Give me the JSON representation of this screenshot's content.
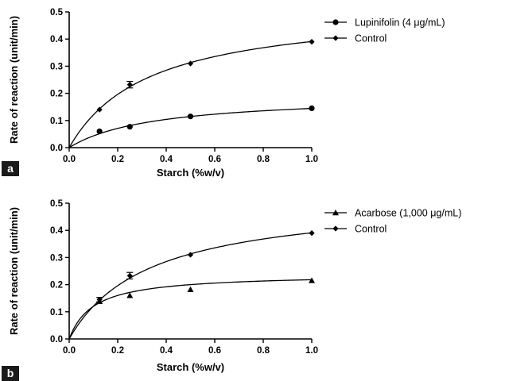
{
  "chart_data": [
    {
      "type": "line",
      "panel_label": "a",
      "xlabel": "Starch (%w/v)",
      "ylabel": "Rate of reaction (unit/min)",
      "xlim": [
        0,
        1.0
      ],
      "ylim": [
        0,
        0.5
      ],
      "xticks": [
        "0.0",
        "0.2",
        "0.4",
        "0.6",
        "0.8",
        "1.0"
      ],
      "yticks": [
        "0.0",
        "0.1",
        "0.2",
        "0.3",
        "0.4",
        "0.5"
      ],
      "legend_position": "top-right",
      "series": [
        {
          "name": "Lupinifolin (4 μg/mL)",
          "marker": "circle",
          "x": [
            0.125,
            0.25,
            0.5,
            1.0
          ],
          "y": [
            0.06,
            0.077,
            0.115,
            0.145
          ],
          "fit": {
            "vmax": 0.195,
            "km": 0.35
          }
        },
        {
          "name": "Control",
          "marker": "diamond",
          "x": [
            0.125,
            0.25,
            0.5,
            1.0
          ],
          "y": [
            0.14,
            0.232,
            0.31,
            0.39
          ],
          "error": [
            0,
            0.012,
            0,
            0
          ],
          "fit": {
            "vmax": 0.52,
            "km": 0.33
          }
        }
      ]
    },
    {
      "type": "line",
      "panel_label": "b",
      "xlabel": "Starch (%w/v)",
      "ylabel": "Rate of reaction (unit/min)",
      "xlim": [
        0,
        1.0
      ],
      "ylim": [
        0,
        0.5
      ],
      "xticks": [
        "0.0",
        "0.2",
        "0.4",
        "0.6",
        "0.8",
        "1.0"
      ],
      "yticks": [
        "0.0",
        "0.1",
        "0.2",
        "0.3",
        "0.4",
        "0.5"
      ],
      "legend_position": "top-right",
      "series": [
        {
          "name": "Acarbose (1,000 μg/mL)",
          "marker": "triangle",
          "x": [
            0.125,
            0.25,
            0.5,
            1.0
          ],
          "y": [
            0.138,
            0.16,
            0.182,
            0.215
          ],
          "fit": {
            "vmax": 0.24,
            "km": 0.1
          }
        },
        {
          "name": "Control",
          "marker": "diamond",
          "x": [
            0.125,
            0.25,
            0.5,
            1.0
          ],
          "y": [
            0.145,
            0.233,
            0.31,
            0.39
          ],
          "error": [
            0.008,
            0.012,
            0,
            0
          ],
          "fit": {
            "vmax": 0.52,
            "km": 0.33
          }
        }
      ]
    }
  ]
}
